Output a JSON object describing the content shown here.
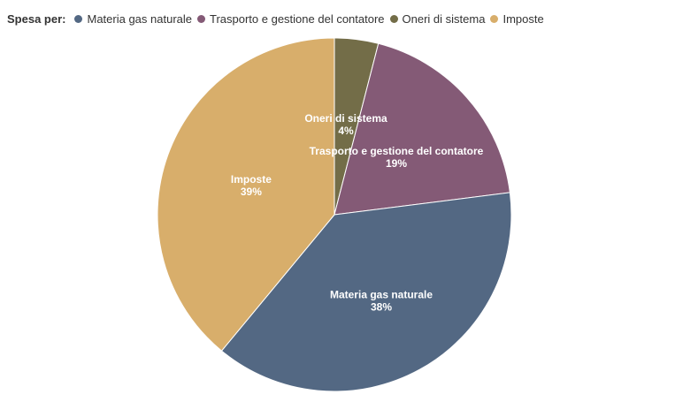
{
  "chart_data": {
    "type": "pie",
    "legend_title": "Spesa per:",
    "legend_position": "top-left",
    "categories": [
      "Materia gas naturale",
      "Trasporto e gestione del contatore",
      "Oneri di sistema",
      "Imposte"
    ],
    "values": [
      38,
      19,
      4,
      39
    ],
    "value_labels": [
      "38%",
      "19%",
      "4%",
      "39%"
    ],
    "colors": [
      "#536883",
      "#845a76",
      "#736d48",
      "#d8ae6b"
    ]
  }
}
